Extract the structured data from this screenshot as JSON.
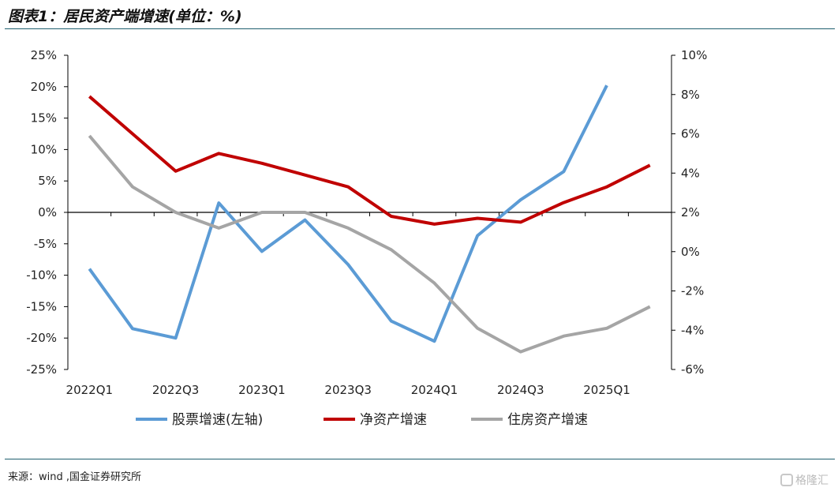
{
  "title": "图表1：居民资产端增速(单位：%)",
  "source": "来源：wind ,国金证券研究所",
  "watermark": "格隆汇",
  "chart_data": {
    "type": "line",
    "categories": [
      "2022Q1",
      "2022Q2",
      "2022Q3",
      "2022Q4",
      "2023Q1",
      "2023Q2",
      "2023Q3",
      "2023Q4",
      "2024Q1",
      "2024Q2",
      "2024Q3",
      "2024Q4",
      "2025Q1",
      "2025Q2"
    ],
    "x_tick_labels": [
      "2022Q1",
      "2022Q3",
      "2023Q1",
      "2023Q3",
      "2024Q1",
      "2024Q3",
      "2025Q1"
    ],
    "left_axis": {
      "min": -25,
      "max": 25,
      "step": 5,
      "tick_labels": [
        "25%",
        "20%",
        "15%",
        "10%",
        "5%",
        "0%",
        "-5%",
        "-10%",
        "-15%",
        "-20%",
        "-25%"
      ]
    },
    "right_axis": {
      "min": -6,
      "max": 10,
      "step": 2,
      "tick_labels": [
        "10%",
        "8%",
        "6%",
        "4%",
        "2%",
        "0%",
        "-2%",
        "-4%",
        "-6%"
      ]
    },
    "grid": false,
    "legend_position": "bottom",
    "series": [
      {
        "name": "股票增速(左轴)",
        "axis": "left",
        "color": "#5b9bd5",
        "values": [
          -9.0,
          -18.5,
          -20.0,
          1.5,
          -6.2,
          -1.2,
          -8.3,
          -17.3,
          -20.5,
          -3.7,
          2.0,
          6.5,
          20.2,
          null
        ]
      },
      {
        "name": "净资产增速",
        "axis": "right",
        "color": "#c00000",
        "values": [
          7.9,
          6.0,
          4.1,
          5.0,
          4.5,
          3.9,
          3.3,
          1.8,
          1.4,
          1.7,
          1.5,
          2.5,
          3.3,
          4.4
        ]
      },
      {
        "name": "住房资产增速",
        "axis": "right",
        "color": "#a5a5a5",
        "values": [
          5.9,
          3.3,
          2.0,
          1.2,
          2.0,
          2.0,
          1.2,
          0.1,
          -1.6,
          -3.9,
          -5.1,
          -4.3,
          -3.9,
          -2.8
        ]
      }
    ]
  }
}
